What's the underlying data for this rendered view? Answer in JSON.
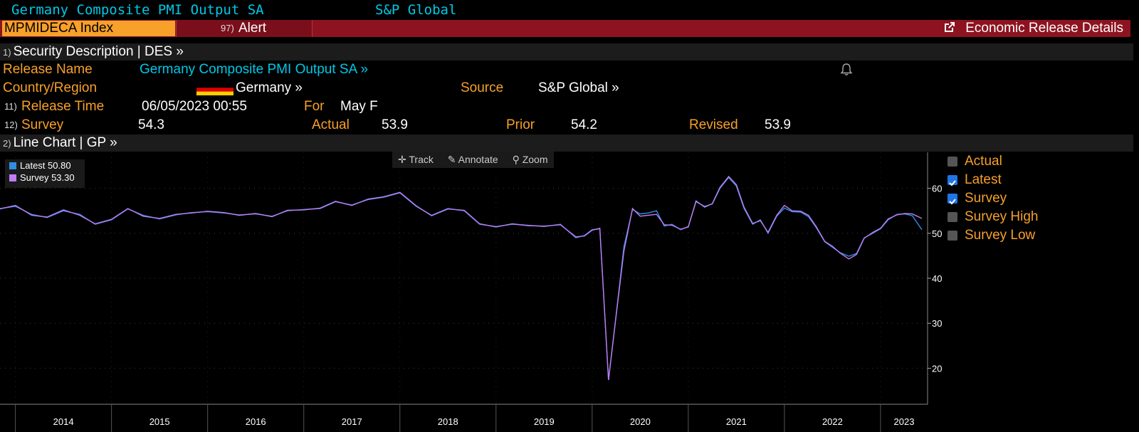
{
  "header": {
    "top_title": "Germany Composite PMI Output SA",
    "top_source": "S&P Global",
    "ticker": "MPMIDECA Index",
    "alert_num": "97)",
    "alert_label": "Alert",
    "release_details": "Economic Release Details"
  },
  "sections": {
    "des_num": "1)",
    "des_label": "Security Description  | DES  »",
    "gp_num": "2)",
    "gp_label": "Line Chart | GP »"
  },
  "fields": {
    "release_name_label": "Release Name",
    "release_name_value": "Germany Composite PMI Output SA »",
    "country_label": "Country/Region",
    "country_value": "Germany »",
    "source_label": "Source",
    "source_value": "S&P Global »",
    "release_time_num": "11)",
    "release_time_label": "Release Time",
    "release_time_value": "06/05/2023 00:55",
    "for_label": "For",
    "for_value": "May F",
    "survey_num": "12)",
    "survey_label": "Survey",
    "survey_value": "54.3",
    "actual_label": "Actual",
    "actual_value": "53.9",
    "prior_label": "Prior",
    "prior_value": "54.2",
    "revised_label": "Revised",
    "revised_value": "53.9"
  },
  "toolbar": {
    "track": "Track",
    "annotate": "Annotate",
    "zoom": "Zoom"
  },
  "legend": {
    "latest": "Latest  50.80",
    "survey": "Survey  53.30"
  },
  "right_legend": [
    {
      "label": "Actual",
      "checked": false
    },
    {
      "label": "Latest",
      "checked": true
    },
    {
      "label": "Survey",
      "checked": true
    },
    {
      "label": "Survey High",
      "checked": false
    },
    {
      "label": "Survey Low",
      "checked": false
    }
  ],
  "colors": {
    "latest": "#2f8de4",
    "survey": "#c07cf2",
    "accent": "#f7a02a",
    "bar": "#8d1320"
  },
  "chart_data": {
    "type": "line",
    "ylim": [
      12,
      68
    ],
    "yticks": [
      20,
      30,
      40,
      50,
      60
    ],
    "year_labels": [
      "2014",
      "2015",
      "2016",
      "2017",
      "2018",
      "2019",
      "2020",
      "2021",
      "2022",
      "2023"
    ],
    "x_start": 2013.84,
    "x_end": 2023.43,
    "series": [
      {
        "name": "Latest",
        "color": "#2f8de4",
        "x": [
          2013.84,
          2014.0,
          2014.17,
          2014.33,
          2014.5,
          2014.67,
          2014.83,
          2015.0,
          2015.17,
          2015.33,
          2015.5,
          2015.67,
          2015.83,
          2016.0,
          2016.17,
          2016.33,
          2016.5,
          2016.67,
          2016.83,
          2017.0,
          2017.17,
          2017.33,
          2017.5,
          2017.67,
          2017.83,
          2018.0,
          2018.17,
          2018.33,
          2018.5,
          2018.67,
          2018.83,
          2019.0,
          2019.17,
          2019.33,
          2019.5,
          2019.67,
          2019.83,
          2019.92,
          2020.0,
          2020.08,
          2020.17,
          2020.25,
          2020.33,
          2020.42,
          2020.5,
          2020.58,
          2020.67,
          2020.75,
          2020.83,
          2020.92,
          2021.0,
          2021.08,
          2021.17,
          2021.25,
          2021.33,
          2021.42,
          2021.5,
          2021.58,
          2021.67,
          2021.75,
          2021.83,
          2021.92,
          2022.0,
          2022.08,
          2022.17,
          2022.25,
          2022.33,
          2022.42,
          2022.5,
          2022.58,
          2022.67,
          2022.75,
          2022.83,
          2022.92,
          2023.0,
          2023.08,
          2023.17,
          2023.25,
          2023.33,
          2023.43
        ],
        "values": [
          55.5,
          56.0,
          54.2,
          53.5,
          55.0,
          54.2,
          52.0,
          53.0,
          55.4,
          54.0,
          53.2,
          54.1,
          54.6,
          54.8,
          54.5,
          54.1,
          54.3,
          53.8,
          55.0,
          55.3,
          55.5,
          57.0,
          56.3,
          57.5,
          58.0,
          59.0,
          56.0,
          54.0,
          55.5,
          55.0,
          52.0,
          51.5,
          52.0,
          51.8,
          51.5,
          52.0,
          49.0,
          49.5,
          50.8,
          51.0,
          17.4,
          32.0,
          47.0,
          55.3,
          54.3,
          54.5,
          55.0,
          51.6,
          52.0,
          50.8,
          51.5,
          57.0,
          56.0,
          56.5,
          60.0,
          62.4,
          60.5,
          55.5,
          52.0,
          53.0,
          50.0,
          53.8,
          55.6,
          54.8,
          54.7,
          53.7,
          51.3,
          48.1,
          46.9,
          45.7,
          44.9,
          45.5,
          49.0,
          50.0,
          51.0,
          53.0,
          54.2,
          54.3,
          53.9,
          50.8
        ]
      },
      {
        "name": "Survey",
        "color": "#c07cf2",
        "x": [
          2013.84,
          2014.0,
          2014.17,
          2014.33,
          2014.5,
          2014.67,
          2014.83,
          2015.0,
          2015.17,
          2015.33,
          2015.5,
          2015.67,
          2015.83,
          2016.0,
          2016.17,
          2016.33,
          2016.5,
          2016.67,
          2016.83,
          2017.0,
          2017.17,
          2017.33,
          2017.5,
          2017.67,
          2017.83,
          2018.0,
          2018.17,
          2018.33,
          2018.5,
          2018.67,
          2018.83,
          2019.0,
          2019.17,
          2019.33,
          2019.5,
          2019.67,
          2019.83,
          2019.92,
          2020.0,
          2020.08,
          2020.17,
          2020.25,
          2020.33,
          2020.42,
          2020.5,
          2020.58,
          2020.67,
          2020.75,
          2020.83,
          2020.92,
          2021.0,
          2021.08,
          2021.17,
          2021.25,
          2021.33,
          2021.42,
          2021.5,
          2021.58,
          2021.67,
          2021.75,
          2021.83,
          2021.92,
          2022.0,
          2022.08,
          2022.17,
          2022.25,
          2022.33,
          2022.42,
          2022.5,
          2022.58,
          2022.67,
          2022.75,
          2022.83,
          2022.92,
          2023.0,
          2023.08,
          2023.17,
          2023.25,
          2023.33,
          2023.43
        ],
        "values": [
          55.4,
          56.2,
          54.0,
          53.6,
          55.2,
          54.0,
          52.1,
          53.1,
          55.5,
          53.8,
          53.3,
          54.2,
          54.5,
          54.9,
          54.6,
          54.0,
          54.4,
          53.7,
          55.1,
          55.2,
          55.6,
          57.1,
          56.2,
          57.6,
          58.1,
          59.1,
          56.1,
          53.9,
          55.4,
          55.1,
          52.1,
          51.4,
          52.1,
          51.7,
          51.6,
          51.9,
          49.2,
          49.4,
          50.7,
          51.1,
          17.4,
          31.8,
          46.0,
          55.5,
          53.8,
          54.0,
          54.2,
          51.9,
          51.8,
          50.9,
          51.4,
          57.2,
          55.8,
          56.6,
          60.2,
          62.6,
          60.8,
          55.8,
          52.2,
          52.8,
          50.2,
          54.0,
          56.2,
          55.0,
          54.9,
          54.0,
          51.5,
          48.2,
          47.1,
          45.6,
          44.3,
          45.3,
          48.9,
          50.2,
          51.1,
          53.2,
          54.1,
          54.4,
          54.3,
          53.3
        ]
      }
    ]
  }
}
